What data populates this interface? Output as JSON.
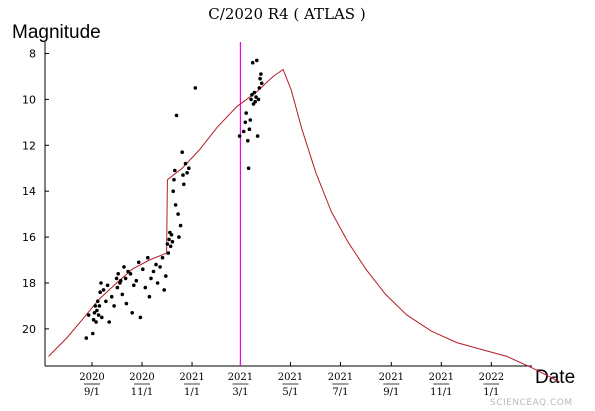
{
  "chart_data": {
    "type": "scatter",
    "title": "C/2020 R4 ( ATLAS )",
    "ylabel": "Magnitude",
    "xlabel": "Date",
    "y_inverted": true,
    "ylim": [
      8,
      22
    ],
    "xlim": [
      "2020-07-10",
      "2022-04-01"
    ],
    "y_ticks": [
      8,
      10,
      12,
      14,
      16,
      18,
      20
    ],
    "x_ticks": [
      {
        "date": "2020-09-01",
        "year": "2020",
        "md": "9/1"
      },
      {
        "date": "2020-11-01",
        "year": "2020",
        "md": "11/1"
      },
      {
        "date": "2021-01-01",
        "year": "2021",
        "md": "1/1"
      },
      {
        "date": "2021-03-01",
        "year": "2021",
        "md": "3/1"
      },
      {
        "date": "2021-05-01",
        "year": "2021",
        "md": "5/1"
      },
      {
        "date": "2021-07-01",
        "year": "2021",
        "md": "7/1"
      },
      {
        "date": "2021-09-01",
        "year": "2021",
        "md": "9/1"
      },
      {
        "date": "2021-11-01",
        "year": "2021",
        "md": "11/1"
      },
      {
        "date": "2022-01-01",
        "year": "2022",
        "md": "1/1"
      }
    ],
    "marker_date": "2021-03-01",
    "grid": false,
    "colors": {
      "model": "#b41e28",
      "marker": "#ee00ee",
      "points": "#000000"
    },
    "series": [
      {
        "kind": "line",
        "points": [
          [
            "2020-07-10",
            21.2
          ],
          [
            "2020-08-01",
            20.4
          ],
          [
            "2020-08-20",
            19.6
          ],
          [
            "2020-09-10",
            18.7
          ],
          [
            "2020-10-01",
            18.0
          ],
          [
            "2020-10-20",
            17.4
          ],
          [
            "2020-11-10",
            17.0
          ],
          [
            "2020-12-01",
            16.7
          ],
          [
            "2020-12-02",
            13.5
          ],
          [
            "2020-12-20",
            13.0
          ],
          [
            "2021-01-10",
            12.2
          ],
          [
            "2021-02-01",
            11.2
          ],
          [
            "2021-02-25",
            10.3
          ],
          [
            "2021-03-20",
            9.7
          ],
          [
            "2021-04-10",
            9.0
          ],
          [
            "2021-04-22",
            8.7
          ],
          [
            "2021-05-02",
            9.6
          ],
          [
            "2021-05-15",
            11.3
          ],
          [
            "2021-06-01",
            13.2
          ],
          [
            "2021-06-20",
            14.9
          ],
          [
            "2021-07-10",
            16.2
          ],
          [
            "2021-08-01",
            17.4
          ],
          [
            "2021-08-25",
            18.5
          ],
          [
            "2021-09-20",
            19.4
          ],
          [
            "2021-10-20",
            20.1
          ],
          [
            "2021-11-20",
            20.6
          ],
          [
            "2021-12-20",
            20.9
          ],
          [
            "2022-01-20",
            21.2
          ],
          [
            "2022-02-20",
            21.7
          ],
          [
            "2022-03-25",
            22.3
          ]
        ]
      },
      {
        "kind": "scatter",
        "points": [
          [
            "2020-08-25",
            20.4
          ],
          [
            "2020-08-28",
            19.4
          ],
          [
            "2020-09-02",
            20.2
          ],
          [
            "2020-09-03",
            19.6
          ],
          [
            "2020-09-04",
            19.3
          ],
          [
            "2020-09-05",
            19.0
          ],
          [
            "2020-09-06",
            19.7
          ],
          [
            "2020-09-07",
            19.2
          ],
          [
            "2020-09-08",
            18.8
          ],
          [
            "2020-09-09",
            19.4
          ],
          [
            "2020-09-10",
            19.0
          ],
          [
            "2020-09-11",
            18.4
          ],
          [
            "2020-09-12",
            18.0
          ],
          [
            "2020-09-13",
            19.5
          ],
          [
            "2020-09-15",
            18.3
          ],
          [
            "2020-09-18",
            18.8
          ],
          [
            "2020-09-20",
            18.1
          ],
          [
            "2020-09-22",
            19.7
          ],
          [
            "2020-09-25",
            18.6
          ],
          [
            "2020-09-28",
            19.0
          ],
          [
            "2020-10-01",
            17.8
          ],
          [
            "2020-10-02",
            18.2
          ],
          [
            "2020-10-03",
            17.6
          ],
          [
            "2020-10-05",
            18.0
          ],
          [
            "2020-10-06",
            17.9
          ],
          [
            "2020-10-08",
            18.5
          ],
          [
            "2020-10-10",
            17.3
          ],
          [
            "2020-10-12",
            17.8
          ],
          [
            "2020-10-13",
            18.9
          ],
          [
            "2020-10-15",
            17.5
          ],
          [
            "2020-10-18",
            17.6
          ],
          [
            "2020-10-20",
            19.3
          ],
          [
            "2020-10-22",
            18.1
          ],
          [
            "2020-10-25",
            17.9
          ],
          [
            "2020-10-28",
            17.1
          ],
          [
            "2020-10-30",
            19.5
          ],
          [
            "2020-11-02",
            17.4
          ],
          [
            "2020-11-05",
            18.2
          ],
          [
            "2020-11-08",
            16.9
          ],
          [
            "2020-11-10",
            18.6
          ],
          [
            "2020-11-12",
            17.8
          ],
          [
            "2020-11-15",
            17.5
          ],
          [
            "2020-11-18",
            17.2
          ],
          [
            "2020-11-20",
            18.0
          ],
          [
            "2020-11-23",
            17.3
          ],
          [
            "2020-11-26",
            16.9
          ],
          [
            "2020-11-28",
            18.3
          ],
          [
            "2020-11-30",
            17.7
          ],
          [
            "2020-12-02",
            16.3
          ],
          [
            "2020-12-03",
            16.7
          ],
          [
            "2020-12-04",
            16.1
          ],
          [
            "2020-12-05",
            15.8
          ],
          [
            "2020-12-06",
            16.4
          ],
          [
            "2020-12-07",
            15.9
          ],
          [
            "2020-12-08",
            16.2
          ],
          [
            "2020-12-09",
            14.0
          ],
          [
            "2020-12-10",
            13.5
          ],
          [
            "2020-12-11",
            13.1
          ],
          [
            "2020-12-12",
            14.6
          ],
          [
            "2020-12-13",
            10.7
          ],
          [
            "2020-12-15",
            15.0
          ],
          [
            "2020-12-16",
            16.0
          ],
          [
            "2020-12-18",
            15.5
          ],
          [
            "2020-12-20",
            12.3
          ],
          [
            "2020-12-21",
            13.3
          ],
          [
            "2020-12-22",
            13.7
          ],
          [
            "2020-12-24",
            12.8
          ],
          [
            "2020-12-26",
            13.2
          ],
          [
            "2020-12-28",
            13.0
          ],
          [
            "2021-01-05",
            9.5
          ],
          [
            "2021-02-28",
            11.6
          ],
          [
            "2021-03-05",
            11.4
          ],
          [
            "2021-03-07",
            11.0
          ],
          [
            "2021-03-08",
            10.6
          ],
          [
            "2021-03-10",
            11.8
          ],
          [
            "2021-03-11",
            13.0
          ],
          [
            "2021-03-12",
            11.3
          ],
          [
            "2021-03-13",
            10.9
          ],
          [
            "2021-03-14",
            10.0
          ],
          [
            "2021-03-15",
            9.8
          ],
          [
            "2021-03-16",
            8.4
          ],
          [
            "2021-03-17",
            10.2
          ],
          [
            "2021-03-18",
            9.7
          ],
          [
            "2021-03-19",
            10.1
          ],
          [
            "2021-03-20",
            9.9
          ],
          [
            "2021-03-21",
            8.3
          ],
          [
            "2021-03-22",
            11.6
          ],
          [
            "2021-03-23",
            10.0
          ],
          [
            "2021-03-24",
            9.5
          ],
          [
            "2021-03-25",
            9.1
          ],
          [
            "2021-03-26",
            8.9
          ],
          [
            "2021-03-27",
            9.3
          ]
        ]
      }
    ]
  },
  "watermark": "SCIENCEAQ.COM"
}
